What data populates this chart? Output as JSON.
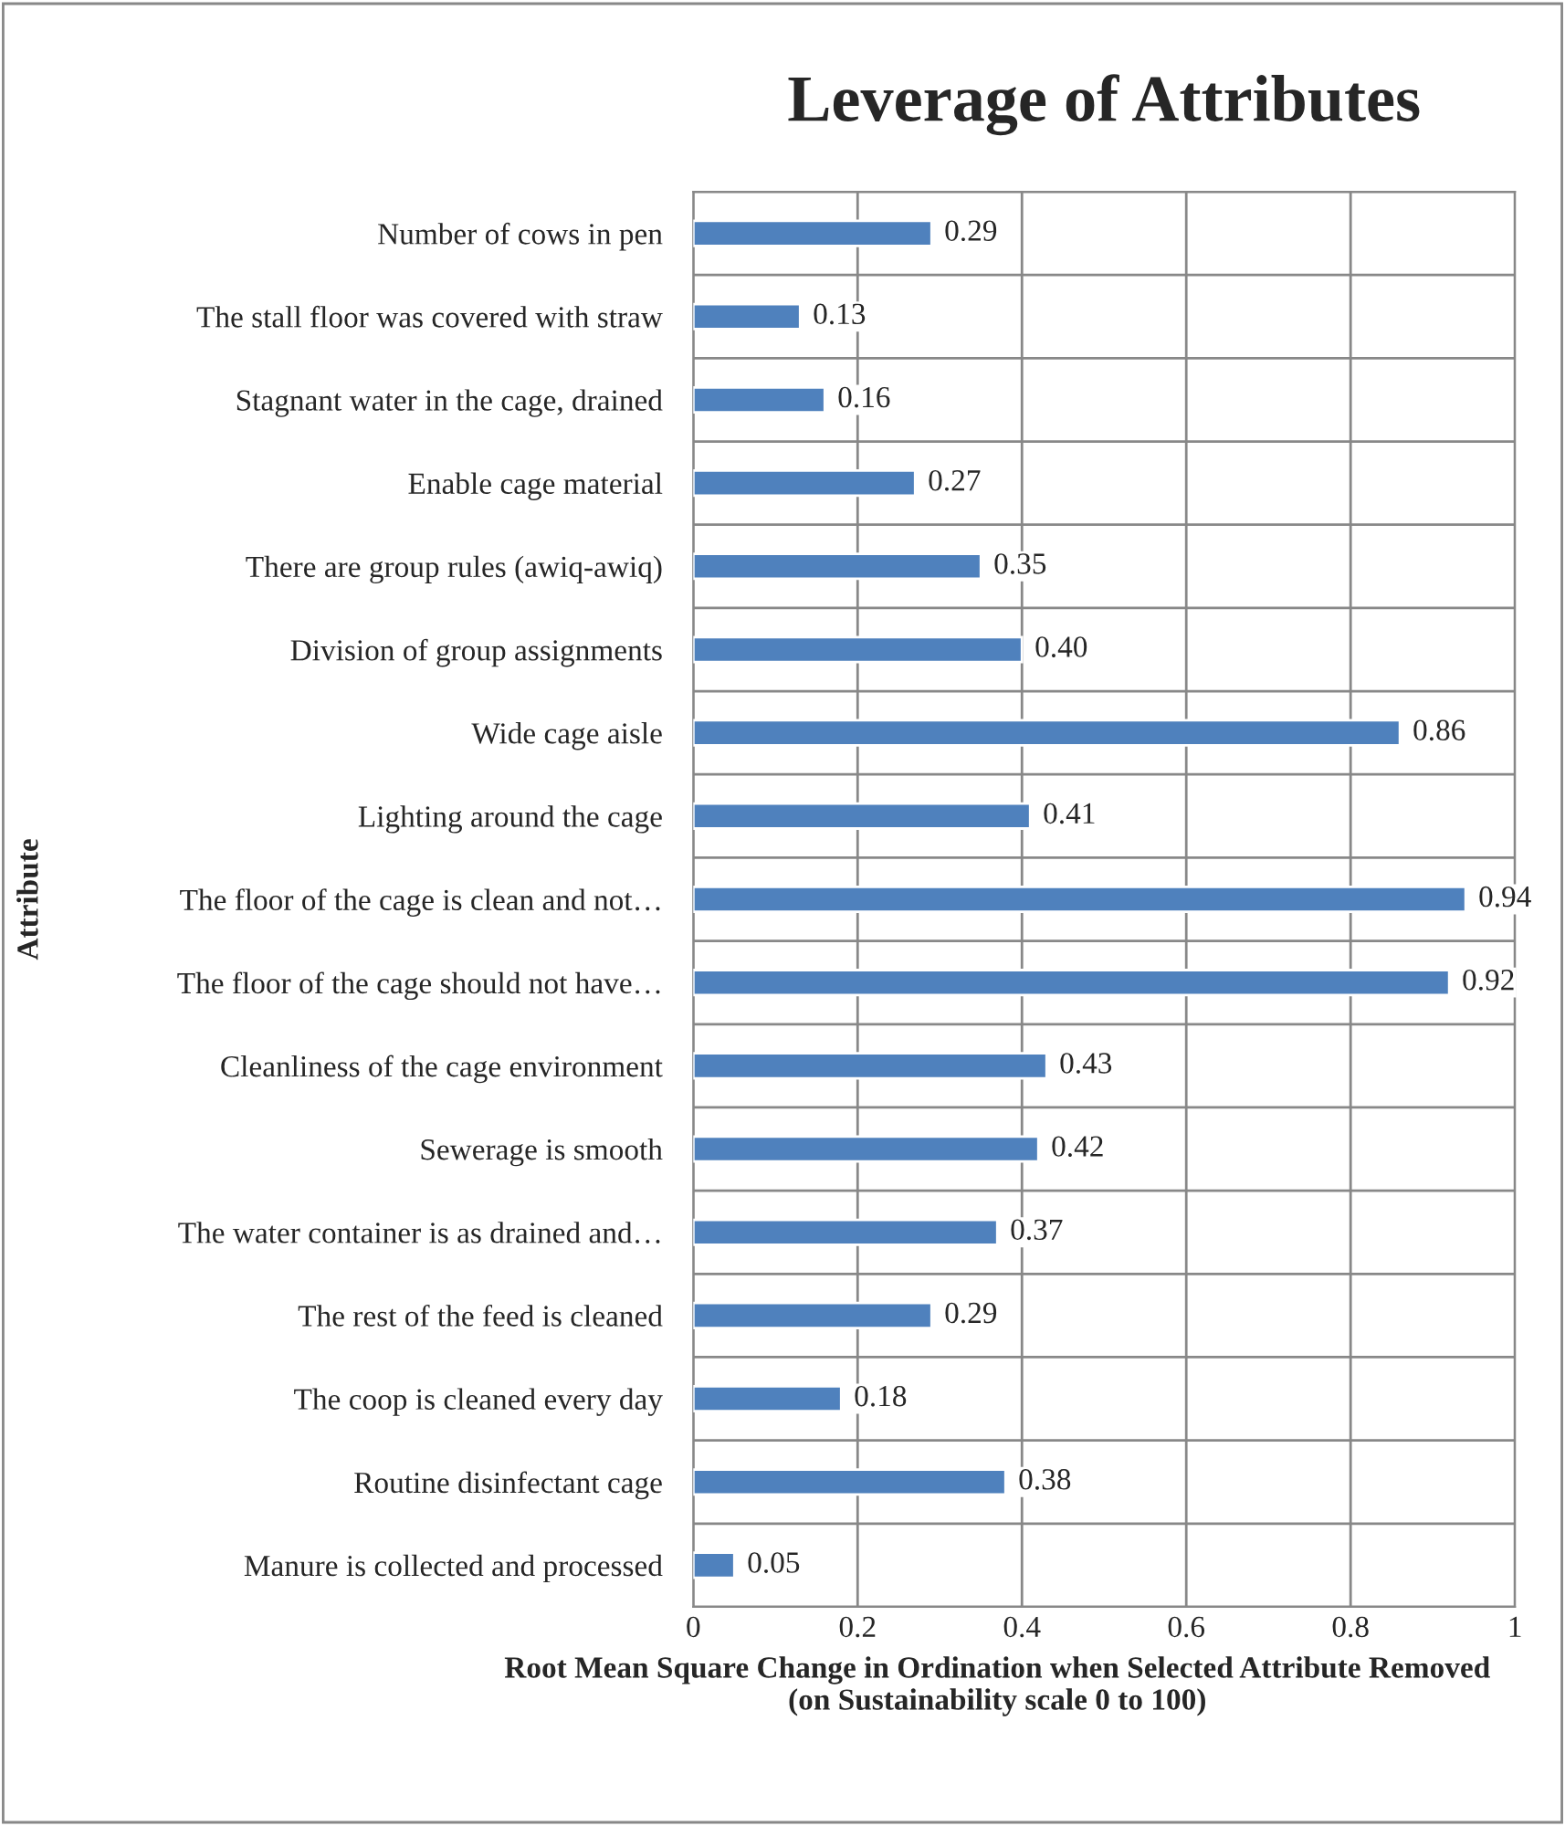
{
  "chart_data": {
    "type": "bar",
    "orientation": "horizontal",
    "title": "Leverage of Attributes",
    "xlabel": "Root Mean Square Change in Ordination when Selected Attribute Removed\n(on Sustainability scale 0 to 100)",
    "ylabel": "Attribute",
    "categories": [
      "Number of cows in pen",
      "The stall floor was covered with straw",
      "Stagnant water in the cage, drained",
      "Enable cage material",
      "There are group rules (awiq-awiq)",
      "Division of group assignments",
      "Wide cage aisle",
      "Lighting around the cage",
      "The floor of the cage is clean and not…",
      "The floor of the cage should not have…",
      "Cleanliness of the cage environment",
      "Sewerage is smooth",
      "The water container is as drained and…",
      "The rest of the feed is cleaned",
      "The coop is cleaned every day",
      "Routine disinfectant cage",
      "Manure is collected and processed"
    ],
    "values": [
      0.29,
      0.13,
      0.16,
      0.27,
      0.35,
      0.4,
      0.86,
      0.41,
      0.94,
      0.92,
      0.43,
      0.42,
      0.37,
      0.29,
      0.18,
      0.38,
      0.05
    ],
    "value_labels": [
      "0.29",
      "0.13",
      "0.16",
      "0.27",
      "0.35",
      "0.40",
      "0.86",
      "0.41",
      "0.94",
      "0.92",
      "0.43",
      "0.42",
      "0.37",
      "0.29",
      "0.18",
      "0.38",
      "0.05"
    ],
    "color": "#4f81bd",
    "xlim": [
      0,
      1
    ],
    "xticks": [
      0,
      0.2,
      0.4,
      0.6,
      0.8,
      1
    ],
    "grid": true,
    "legend": false
  }
}
